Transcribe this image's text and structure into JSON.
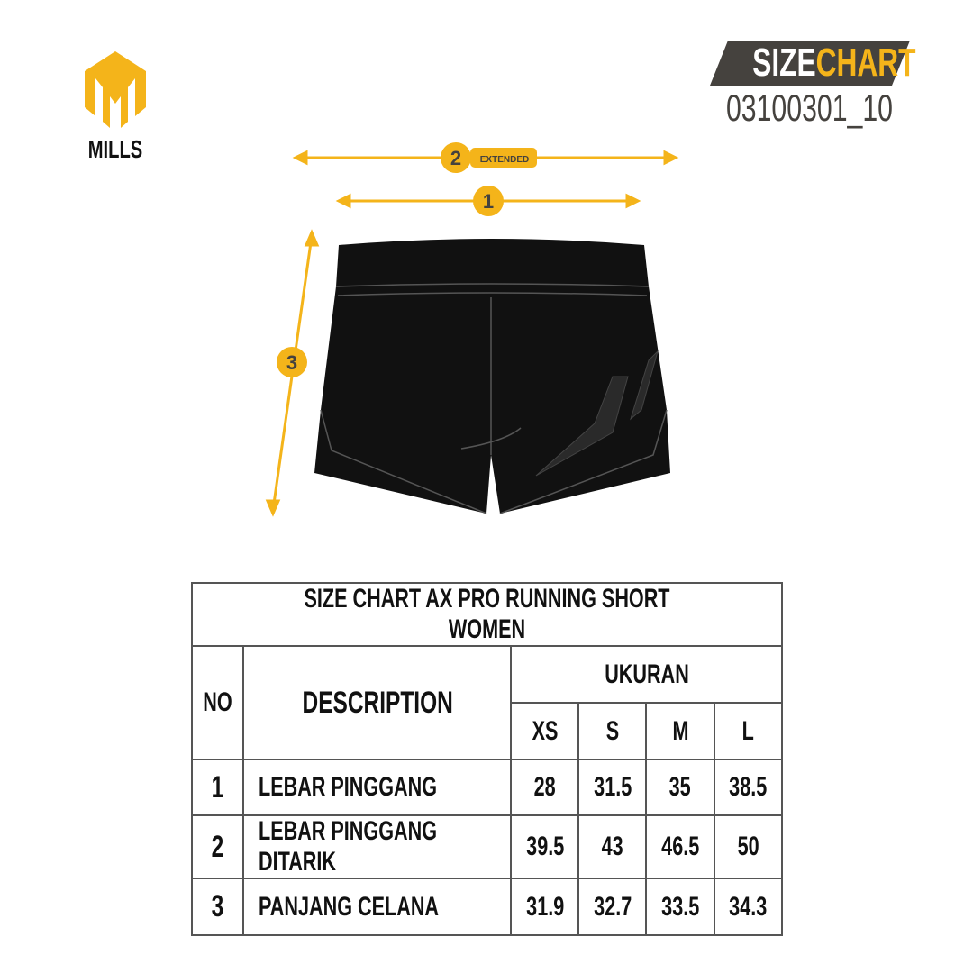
{
  "brand": {
    "name": "MILLS",
    "color": "#f4b41a"
  },
  "badge": {
    "part1": "SIZE",
    "part2": "CHART",
    "code": "03100301_10",
    "bg": "#45423e"
  },
  "diagram": {
    "markers": [
      "1",
      "2",
      "3"
    ],
    "extended_label": "EXTENDED"
  },
  "table": {
    "title": "SIZE CHART AX PRO RUNNING SHORT WOMEN",
    "col_no": "NO",
    "col_desc": "DESCRIPTION",
    "col_group": "UKURAN",
    "sizes": [
      "XS",
      "S",
      "M",
      "L"
    ],
    "rows": [
      {
        "no": "1",
        "desc": "LEBAR PINGGANG",
        "values": [
          "28",
          "31.5",
          "35",
          "38.5"
        ]
      },
      {
        "no": "2",
        "desc": "LEBAR PINGGANG DITARIK",
        "values": [
          "39.5",
          "43",
          "46.5",
          "50"
        ]
      },
      {
        "no": "3",
        "desc": "PANJANG CELANA",
        "values": [
          "31.9",
          "32.7",
          "33.5",
          "34.3"
        ]
      }
    ]
  }
}
